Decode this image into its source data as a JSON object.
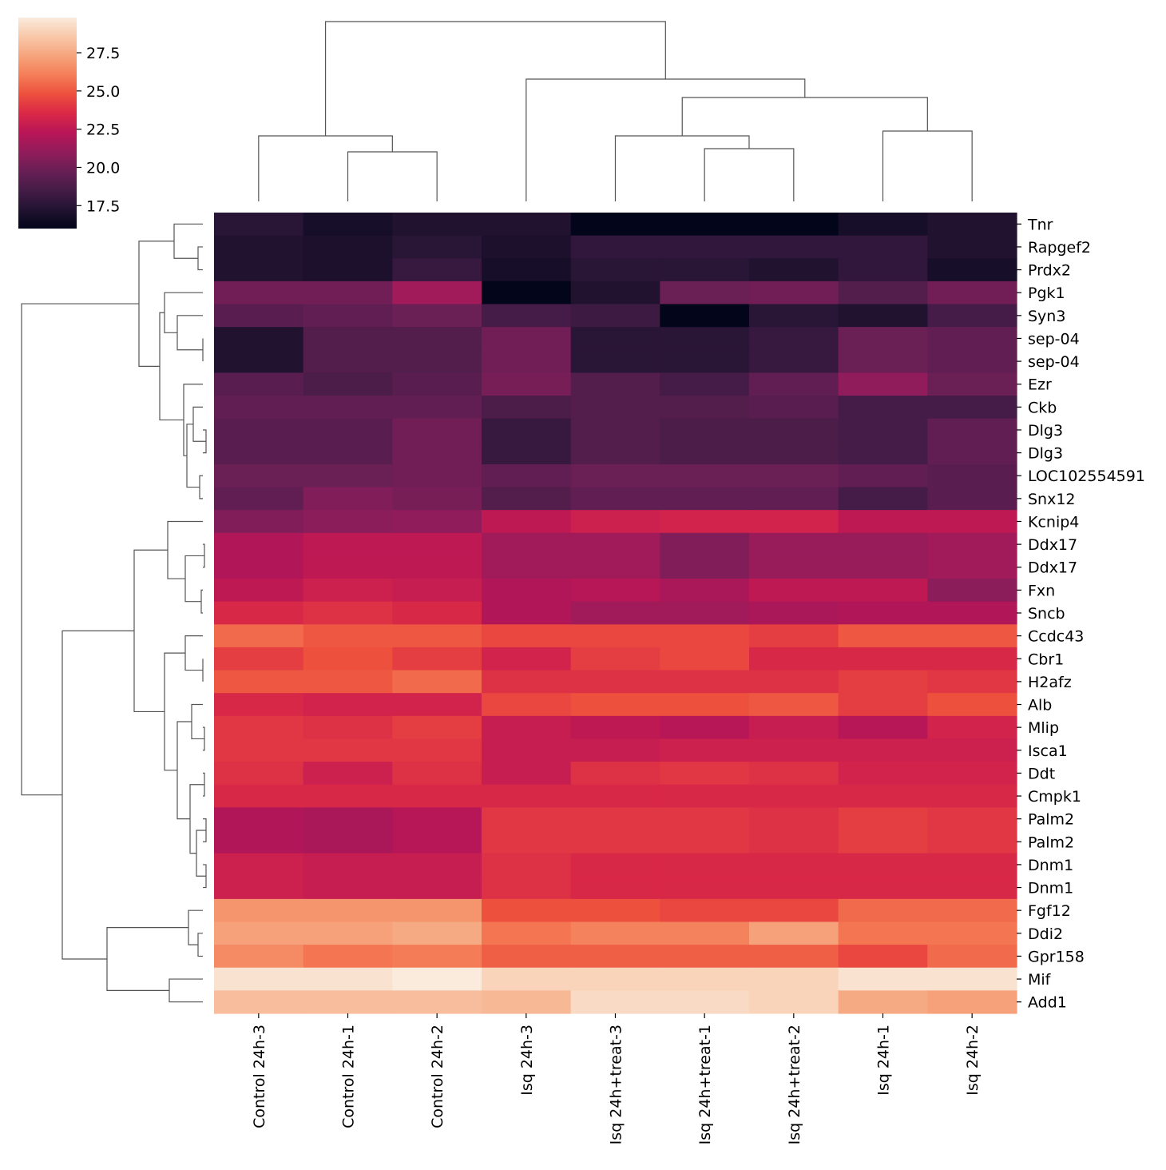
{
  "chart_data": {
    "type": "heatmap",
    "title": "",
    "xlabel": "",
    "ylabel": "",
    "columns": [
      "Control 24h-3",
      "Control 24h-1",
      "Control 24h-2",
      "Isq 24h-3",
      "Isq 24h+treat-3",
      "Isq 24h+treat-1",
      "Isq 24h+treat-2",
      "Isq 24h-1",
      "Isq 24h-2"
    ],
    "rows": [
      "Tnr",
      "Rapgef2",
      "Prdx2",
      "Pgk1",
      "Syn3",
      "sep-04",
      "sep-04",
      "Ezr",
      "Ckb",
      "Dlg3",
      "Dlg3",
      "LOC102554591",
      "Snx12",
      "Kcnip4",
      "Ddx17",
      "Ddx17",
      "Fxn",
      "Sncb",
      "Ccdc43",
      "Cbr1",
      "H2afz",
      "Alb",
      "Mlip",
      "Isca1",
      "Ddt",
      "Cmpk1",
      "Palm2",
      "Palm2",
      "Dnm1",
      "Dnm1",
      "Fgf12",
      "Ddi2",
      "Gpr158",
      "Mif",
      "Add1"
    ],
    "values": [
      [
        17.5,
        16.8,
        17.2,
        17.2,
        16.0,
        15.8,
        15.8,
        16.8,
        17.2
      ],
      [
        17.2,
        17.0,
        17.5,
        17.0,
        17.8,
        17.8,
        17.8,
        17.8,
        17.2
      ],
      [
        17.2,
        17.0,
        18.0,
        16.8,
        17.5,
        17.5,
        17.2,
        17.8,
        16.8
      ],
      [
        20.0,
        20.0,
        21.5,
        15.8,
        17.2,
        19.8,
        20.0,
        19.0,
        20.0
      ],
      [
        19.2,
        19.5,
        19.8,
        18.5,
        18.2,
        16.0,
        17.5,
        17.2,
        18.5
      ],
      [
        17.2,
        19.0,
        19.0,
        20.0,
        17.5,
        17.5,
        18.0,
        19.8,
        19.5
      ],
      [
        17.2,
        19.0,
        19.0,
        20.0,
        17.5,
        17.5,
        18.0,
        19.8,
        19.5
      ],
      [
        19.2,
        18.8,
        19.2,
        20.2,
        19.0,
        18.5,
        19.5,
        21.0,
        19.8
      ],
      [
        19.5,
        19.5,
        19.5,
        18.8,
        19.0,
        19.0,
        19.2,
        18.5,
        18.5
      ],
      [
        19.2,
        19.2,
        20.0,
        18.0,
        19.0,
        18.8,
        18.8,
        18.5,
        19.5
      ],
      [
        19.2,
        19.2,
        20.0,
        18.0,
        19.0,
        18.8,
        18.8,
        18.5,
        19.5
      ],
      [
        19.8,
        19.8,
        20.0,
        19.5,
        19.8,
        19.8,
        19.8,
        19.5,
        19.2
      ],
      [
        19.5,
        20.5,
        20.2,
        19.0,
        19.5,
        19.5,
        19.5,
        18.5,
        19.2
      ],
      [
        20.5,
        20.8,
        21.0,
        22.5,
        23.0,
        23.2,
        23.2,
        22.5,
        22.5
      ],
      [
        22.0,
        22.5,
        22.5,
        21.5,
        21.5,
        20.5,
        21.2,
        21.2,
        21.5
      ],
      [
        22.0,
        22.5,
        22.5,
        21.5,
        21.5,
        20.5,
        21.2,
        21.2,
        21.5
      ],
      [
        22.5,
        23.0,
        22.8,
        22.0,
        22.2,
        21.8,
        22.5,
        22.5,
        20.8
      ],
      [
        23.5,
        23.8,
        23.5,
        22.0,
        21.5,
        21.5,
        21.8,
        22.0,
        22.0
      ],
      [
        25.5,
        25.0,
        25.0,
        24.5,
        24.5,
        24.5,
        24.2,
        25.0,
        25.0
      ],
      [
        24.2,
        24.8,
        24.2,
        23.2,
        24.2,
        24.5,
        23.5,
        23.5,
        23.5
      ],
      [
        25.0,
        25.0,
        25.5,
        23.8,
        23.8,
        23.8,
        23.8,
        24.2,
        24.0
      ],
      [
        23.5,
        23.2,
        23.2,
        24.5,
        24.8,
        24.8,
        25.0,
        24.2,
        24.8
      ],
      [
        24.0,
        23.8,
        24.2,
        22.8,
        22.5,
        22.2,
        22.8,
        22.2,
        23.2
      ],
      [
        24.0,
        24.0,
        24.0,
        22.8,
        22.8,
        23.0,
        23.0,
        23.0,
        23.0
      ],
      [
        23.8,
        23.0,
        23.8,
        22.8,
        23.8,
        24.0,
        23.8,
        23.2,
        23.2
      ],
      [
        23.5,
        23.5,
        23.5,
        23.5,
        23.5,
        23.5,
        23.5,
        23.5,
        23.5
      ],
      [
        22.0,
        21.8,
        22.2,
        24.0,
        24.0,
        24.0,
        23.8,
        24.2,
        24.0
      ],
      [
        22.0,
        21.8,
        22.2,
        24.0,
        24.0,
        24.0,
        23.8,
        24.2,
        24.0
      ],
      [
        23.0,
        22.8,
        22.8,
        23.8,
        23.5,
        23.5,
        23.5,
        23.5,
        23.5
      ],
      [
        23.0,
        22.8,
        22.8,
        23.8,
        23.5,
        23.5,
        23.5,
        23.5,
        23.5
      ],
      [
        26.8,
        26.8,
        26.8,
        24.8,
        24.8,
        24.5,
        24.5,
        25.5,
        25.5
      ],
      [
        27.2,
        27.2,
        27.5,
        25.8,
        26.2,
        26.2,
        27.2,
        25.8,
        25.8
      ],
      [
        26.5,
        25.8,
        26.0,
        25.2,
        25.2,
        25.2,
        25.2,
        24.5,
        25.5
      ],
      [
        29.5,
        29.5,
        29.8,
        29.0,
        29.0,
        29.0,
        29.0,
        29.5,
        29.5
      ],
      [
        28.2,
        28.2,
        28.2,
        28.0,
        29.2,
        29.2,
        29.0,
        27.5,
        27.2
      ]
    ],
    "value_range": [
      16,
      29.8
    ],
    "colorbar": {
      "ticks": [
        17.5,
        20.0,
        22.5,
        25.0,
        27.5
      ],
      "tick_labels": [
        "17.5",
        "20.0",
        "22.5",
        "25.0",
        "27.5"
      ],
      "colormap": "rocket",
      "stops": [
        "#03051a",
        "#221331",
        "#451c47",
        "#691f55",
        "#921c5b",
        "#b91657",
        "#d92847",
        "#ed503e",
        "#f47d57",
        "#f6a47c",
        "#f8c7a8",
        "#faebdd"
      ]
    },
    "dendrogram_position": {
      "columns": "top",
      "rows": "left"
    }
  }
}
